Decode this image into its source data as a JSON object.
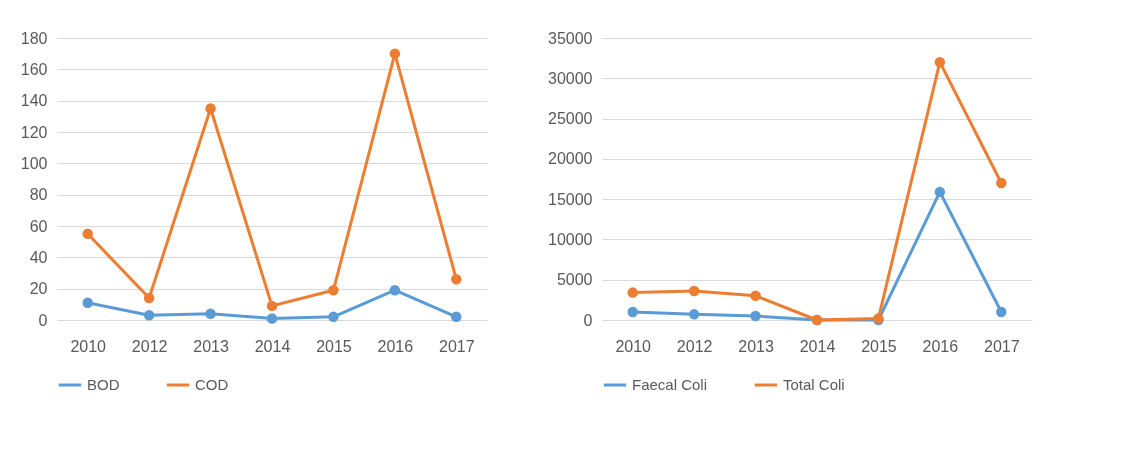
{
  "chart_data": [
    {
      "type": "line",
      "categories": [
        "2010",
        "2012",
        "2013",
        "2014",
        "2015",
        "2016",
        "2017"
      ],
      "series": [
        {
          "name": "BOD",
          "color": "#5b9bd5",
          "values": [
            11,
            3,
            4,
            1,
            2,
            19,
            2
          ]
        },
        {
          "name": "COD",
          "color": "#ed7d31",
          "values": [
            55,
            14,
            135,
            9,
            19,
            170,
            26
          ]
        }
      ],
      "ylim": [
        0,
        180
      ],
      "yticks": [
        0,
        20,
        40,
        60,
        80,
        100,
        120,
        140,
        160,
        180
      ],
      "grid": "y",
      "legend": "bottom",
      "marker": "circle",
      "line_style": "solid"
    },
    {
      "type": "line",
      "categories": [
        "2010",
        "2012",
        "2013",
        "2014",
        "2015",
        "2016",
        "2017"
      ],
      "series": [
        {
          "name": "Faecal Coli",
          "color": "#5b9bd5",
          "values": [
            1000,
            700,
            500,
            0,
            0,
            15900,
            1000
          ]
        },
        {
          "name": "Total Coli",
          "color": "#ed7d31",
          "values": [
            3400,
            3600,
            3000,
            0,
            200,
            32000,
            17000
          ]
        }
      ],
      "ylim": [
        0,
        35000
      ],
      "yticks": [
        0,
        5000,
        10000,
        15000,
        20000,
        25000,
        30000,
        35000
      ],
      "grid": "y",
      "legend": "bottom",
      "marker": "circle",
      "line_style": "solid"
    }
  ]
}
